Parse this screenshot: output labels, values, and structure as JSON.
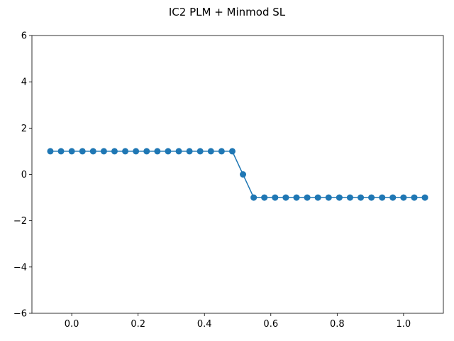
{
  "chart_data": {
    "type": "line",
    "title": "IC2 PLM + Minmod SL",
    "xlabel": "",
    "ylabel": "",
    "xlim": [
      -0.12,
      1.12
    ],
    "ylim": [
      -6,
      6
    ],
    "x_ticks": [
      0.0,
      0.2,
      0.4,
      0.6,
      0.8,
      1.0
    ],
    "x_tick_labels": [
      "0.0",
      "0.2",
      "0.4",
      "0.6",
      "0.8",
      "1.0"
    ],
    "y_ticks": [
      -6,
      -4,
      -2,
      0,
      2,
      4,
      6
    ],
    "y_tick_labels": [
      "−6",
      "−4",
      "−2",
      "0",
      "2",
      "4",
      "6"
    ],
    "grid": false,
    "legend": "none",
    "series": [
      {
        "color": "#1f77b4",
        "marker": "circle",
        "x": [
          -0.0645,
          -0.0323,
          0.0,
          0.0323,
          0.0645,
          0.0968,
          0.129,
          0.1613,
          0.1935,
          0.2258,
          0.2581,
          0.2903,
          0.3226,
          0.3548,
          0.3871,
          0.4194,
          0.4516,
          0.4839,
          0.5161,
          0.5484,
          0.5806,
          0.6129,
          0.6452,
          0.6774,
          0.7097,
          0.7419,
          0.7742,
          0.8065,
          0.8387,
          0.871,
          0.9032,
          0.9355,
          0.9677,
          1.0,
          1.0323,
          1.0645
        ],
        "y": [
          1,
          1,
          1,
          1,
          1,
          1,
          1,
          1,
          1,
          1,
          1,
          1,
          1,
          1,
          1,
          1,
          1,
          1,
          0,
          -1,
          -1,
          -1,
          -1,
          -1,
          -1,
          -1,
          -1,
          -1,
          -1,
          -1,
          -1,
          -1,
          -1,
          -1,
          -1,
          -1
        ]
      }
    ]
  }
}
